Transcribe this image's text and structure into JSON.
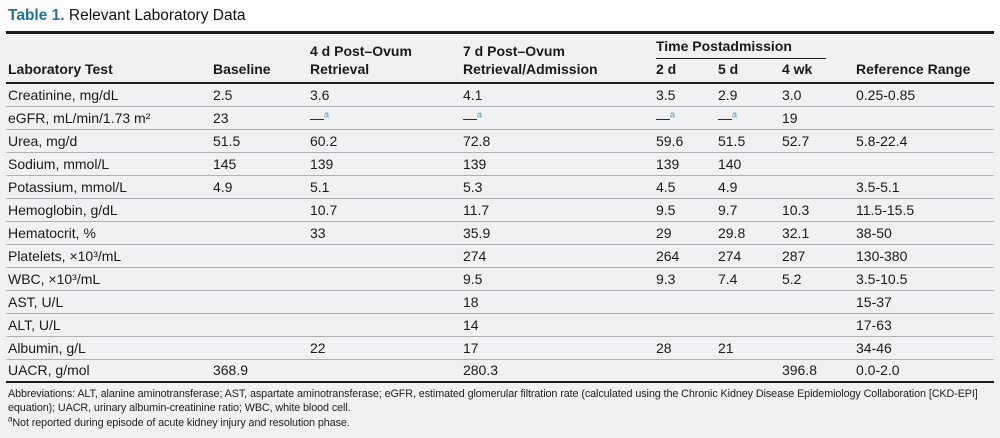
{
  "title": {
    "label": "Table 1.",
    "text": "Relevant Laboratory Data"
  },
  "colors": {
    "title_accent": "#1f6fa9",
    "dash_marker": "#4ba3c3",
    "sheet_bg": "#f0f1f3",
    "rule_dark": "#1b1b1b",
    "rule_light": "#aeb0b4"
  },
  "table": {
    "headers": {
      "lab_test": "Laboratory Test",
      "baseline": "Baseline",
      "post_ovum_4d": "4 d Post–Ovum Retrieval",
      "post_ovum_7d": "7 d Post–Ovum Retrieval/Admission",
      "time_postadmission": "Time Postadmission",
      "sub": [
        "2 d",
        "5 d",
        "4 wk"
      ],
      "reference": "Reference Range"
    },
    "dash_symbol": "—",
    "dash_note_marker": "a",
    "rows": [
      {
        "test": "Creatinine, mg/dL",
        "cells": [
          "2.5",
          "3.6",
          "4.1",
          "3.5",
          "2.9",
          "3.0",
          "0.25-0.85"
        ]
      },
      {
        "test": "eGFR, mL/min/1.73 m²",
        "cells": [
          "23",
          {
            "dash": true
          },
          {
            "dash": true
          },
          {
            "dash": true
          },
          {
            "dash": true
          },
          "19",
          ""
        ]
      },
      {
        "test": "Urea, mg/d",
        "cells": [
          "51.5",
          "60.2",
          "72.8",
          "59.6",
          "51.5",
          "52.7",
          "5.8-22.4"
        ]
      },
      {
        "test": "Sodium, mmol/L",
        "cells": [
          "145",
          "139",
          "139",
          "139",
          "140",
          "",
          ""
        ]
      },
      {
        "test": "Potassium, mmol/L",
        "cells": [
          "4.9",
          "5.1",
          "5.3",
          "4.5",
          "4.9",
          "",
          "3.5-5.1"
        ]
      },
      {
        "test": "Hemoglobin, g/dL",
        "cells": [
          "",
          "10.7",
          "11.7",
          "9.5",
          "9.7",
          "10.3",
          "11.5-15.5"
        ]
      },
      {
        "test": "Hematocrit, %",
        "cells": [
          "",
          "33",
          "35.9",
          "29",
          "29.8",
          "32.1",
          "38-50"
        ]
      },
      {
        "test": "Platelets, ×10³/mL",
        "cells": [
          "",
          "",
          "274",
          "264",
          "274",
          "287",
          "130-380"
        ]
      },
      {
        "test": "WBC, ×10³/mL",
        "cells": [
          "",
          "",
          "9.5",
          "9.3",
          "7.4",
          "5.2",
          "3.5-10.5"
        ]
      },
      {
        "test": "AST, U/L",
        "cells": [
          "",
          "",
          "18",
          "",
          "",
          "",
          "15-37"
        ]
      },
      {
        "test": "ALT, U/L",
        "cells": [
          "",
          "",
          "14",
          "",
          "",
          "",
          "17-63"
        ]
      },
      {
        "test": "Albumin, g/L",
        "cells": [
          "",
          "22",
          "17",
          "28",
          "21",
          "",
          "34-46"
        ]
      },
      {
        "test": "UACR, g/mol",
        "cells": [
          "368.9",
          "",
          "280.3",
          "",
          "",
          "396.8",
          "0.0-2.0"
        ]
      }
    ]
  },
  "footnotes": {
    "abbreviations": "Abbreviations: ALT, alanine aminotransferase; AST, aspartate aminotransferase; eGFR, estimated glomerular filtration rate (calculated using the Chronic Kidney Disease Epidemiology Collaboration [CKD-EPI] equation); UACR, urinary albumin-creatinine ratio; WBC, white blood cell.",
    "note_marker": "a",
    "note_text": "Not reported during episode of acute kidney injury and resolution phase."
  }
}
